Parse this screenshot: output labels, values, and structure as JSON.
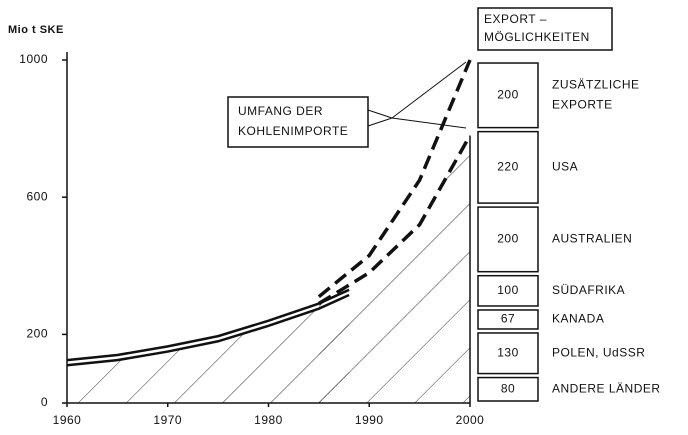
{
  "chart_data": {
    "type": "line",
    "ylabel": "Mio t SKE",
    "ylim": [
      0,
      1000
    ],
    "yticks": [
      0,
      200,
      600,
      1000
    ],
    "xlim": [
      1960,
      2000
    ],
    "xticks": [
      1960,
      1970,
      1980,
      1990,
      2000
    ],
    "series": [
      {
        "style": "solid",
        "color": "#111111",
        "x": [
          1960,
          1965,
          1970,
          1975,
          1980,
          1985,
          1988
        ],
        "values": [
          125,
          140,
          165,
          195,
          240,
          290,
          330
        ]
      },
      {
        "style": "solid",
        "color": "#111111",
        "hatch": true,
        "x": [
          1960,
          1965,
          1970,
          1975,
          1980,
          1985,
          1988
        ],
        "values": [
          110,
          125,
          150,
          180,
          225,
          275,
          315
        ]
      },
      {
        "style": "dashed",
        "color": "#111111",
        "x": [
          1985,
          1990,
          1995,
          2000
        ],
        "values": [
          310,
          430,
          650,
          1000
        ]
      },
      {
        "style": "dashed",
        "color": "#111111",
        "hatch": true,
        "x": [
          1985,
          1990,
          1995,
          2000
        ],
        "values": [
          290,
          380,
          520,
          780
        ]
      }
    ],
    "annotation": [
      "UMFANG DER",
      "KOHLENIMPORTE"
    ],
    "export": {
      "title": [
        "EXPORT –",
        "MÖGLICHKEITEN"
      ],
      "items": [
        {
          "value": 80,
          "label": [
            "ANDERE LÄNDER"
          ]
        },
        {
          "value": 130,
          "label": [
            "POLEN, UdSSR"
          ]
        },
        {
          "value": 67,
          "label": [
            "KANADA"
          ]
        },
        {
          "value": 100,
          "label": [
            "SÜDAFRIKA"
          ]
        },
        {
          "value": 200,
          "label": [
            "AUSTRALIEN"
          ]
        },
        {
          "value": 220,
          "label": [
            "USA"
          ]
        },
        {
          "value": 200,
          "label": [
            "ZUSÄTZLICHE",
            "EXPORTE"
          ]
        }
      ]
    }
  }
}
